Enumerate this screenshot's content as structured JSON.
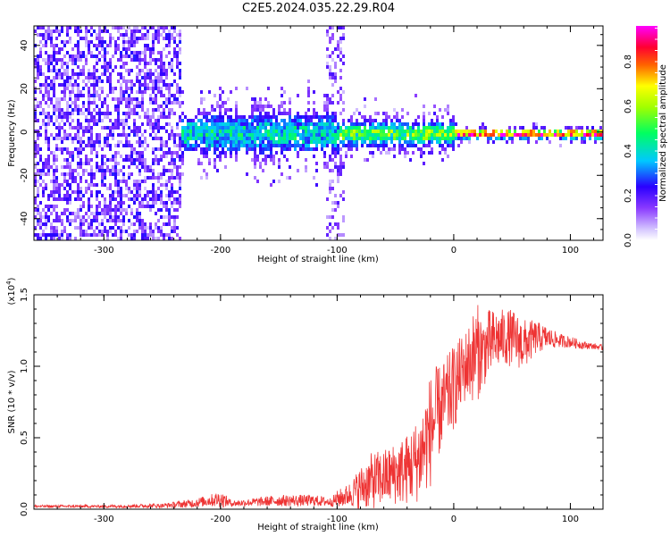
{
  "title": "C2E5.2024.035.22.29.R04",
  "chart_data": [
    {
      "type": "heatmap",
      "xlabel": "Height of straight line (km)",
      "ylabel": "Frequency (Hz)",
      "xlim": [
        -360,
        128
      ],
      "ylim": [
        -50,
        49
      ],
      "xticks": [
        -300,
        -200,
        -100,
        0,
        100
      ],
      "yticks": [
        -40,
        -20,
        0,
        20,
        40
      ],
      "description_regions": [
        {
          "x_range": [
            -360,
            -235
          ],
          "freq_spread": 49,
          "amplitude": 0.1
        },
        {
          "x_range": [
            -235,
            -100
          ],
          "freq_spread": 14,
          "amplitude": 0.35
        },
        {
          "x_range": [
            -100,
            0
          ],
          "freq_spread": 8,
          "amplitude": 0.5
        },
        {
          "x_range": [
            0,
            128
          ],
          "freq_spread": 3,
          "amplitude": 0.9
        }
      ],
      "colorbar": {
        "label": "Normalized spectral amplitude",
        "range": [
          0.0,
          1.0
        ],
        "ticks": [
          "0.0",
          "0.2",
          "0.4",
          "0.6",
          "0.8"
        ],
        "colors": [
          "#ffffff",
          "#d6c8ff",
          "#6a1aff",
          "#0000ff",
          "#00ffff",
          "#00ff00",
          "#ffff00",
          "#ff0000",
          "#ff00ff"
        ]
      }
    },
    {
      "type": "line",
      "xlabel": "Height of straight line (km)",
      "ylabel": "SNR (10 * v/v)",
      "ylabel_multiplier": "(x10^4)",
      "multiplier_base": "(x10",
      "multiplier_exp": "4",
      "multiplier_close": ")",
      "xlim": [
        -360,
        128
      ],
      "ylim": [
        0,
        1.5
      ],
      "xticks": [
        -300,
        -200,
        -100,
        0,
        100
      ],
      "yticks": [
        "0.0",
        "0.5",
        "1.0",
        "1.5"
      ],
      "color": "#ee3333",
      "envelope_points": {
        "x": [
          -360,
          -300,
          -250,
          -225,
          -210,
          -200,
          -190,
          -170,
          -150,
          -120,
          -105,
          -100,
          -90,
          -80,
          -70,
          -60,
          -50,
          -40,
          -30,
          -25,
          -20,
          -15,
          -10,
          0,
          10,
          15,
          20,
          25,
          30,
          40,
          50,
          60,
          70,
          80,
          90,
          100,
          110,
          120,
          128
        ],
        "mean": [
          0.02,
          0.02,
          0.025,
          0.04,
          0.06,
          0.07,
          0.04,
          0.05,
          0.06,
          0.06,
          0.05,
          0.07,
          0.1,
          0.15,
          0.2,
          0.22,
          0.25,
          0.28,
          0.35,
          0.45,
          0.55,
          0.65,
          0.72,
          0.85,
          1.0,
          1.05,
          1.1,
          1.1,
          1.15,
          1.2,
          1.2,
          1.15,
          1.2,
          1.2,
          1.18,
          1.17,
          1.15,
          1.14,
          1.13
        ],
        "spread": [
          0.01,
          0.01,
          0.015,
          0.03,
          0.04,
          0.06,
          0.02,
          0.03,
          0.04,
          0.04,
          0.03,
          0.06,
          0.08,
          0.15,
          0.2,
          0.2,
          0.22,
          0.25,
          0.3,
          0.35,
          0.4,
          0.35,
          0.3,
          0.3,
          0.25,
          0.3,
          0.35,
          0.25,
          0.25,
          0.2,
          0.2,
          0.18,
          0.12,
          0.08,
          0.05,
          0.04,
          0.03,
          0.02,
          0.02
        ]
      }
    }
  ]
}
